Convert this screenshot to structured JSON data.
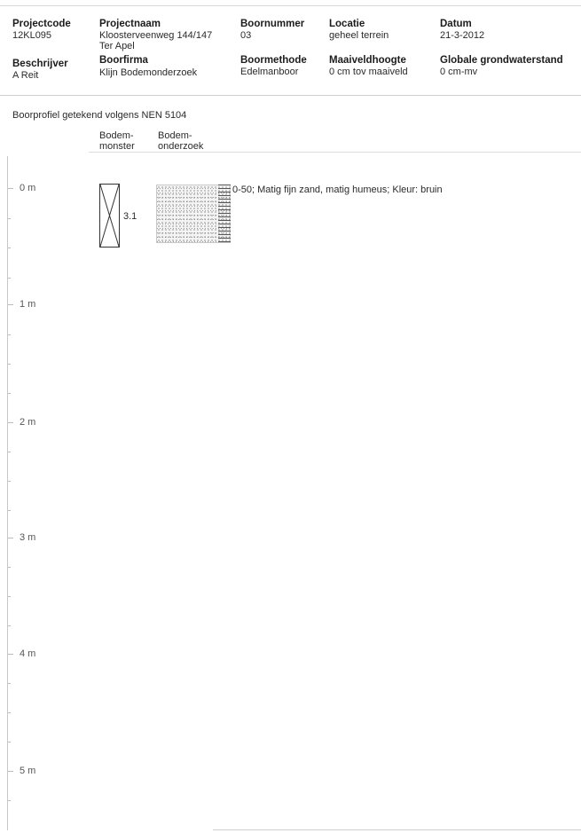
{
  "header": {
    "projectcode": {
      "label": "Projectcode",
      "value": "12KL095"
    },
    "projectnaam": {
      "label": "Projectnaam",
      "value_line1": "Kloosterveenweg 144/147",
      "value_line2": "Ter Apel"
    },
    "boornummer": {
      "label": "Boornummer",
      "value": "03"
    },
    "locatie": {
      "label": "Locatie",
      "value": "geheel terrein"
    },
    "datum": {
      "label": "Datum",
      "value": "21-3-2012"
    },
    "beschrijver": {
      "label": "Beschrijver",
      "value": "A Reit"
    },
    "boorfirma": {
      "label": "Boorfirma",
      "value": "Klijn Bodemonderzoek"
    },
    "boormethode": {
      "label": "Boormethode",
      "value": "Edelmanboor"
    },
    "maaiveldhoogte": {
      "label": "Maaiveldhoogte",
      "value": "0 cm tov maaiveld"
    },
    "grondwaterstand": {
      "label": "Globale grondwaterstand",
      "value": "0 cm-mv"
    }
  },
  "profile_note": "Boorprofiel getekend volgens NEN 5104",
  "columns": {
    "bodemmonster_line1": "Bodem-",
    "bodemmonster_line2": "monster",
    "bodemonderzoek_line1": "Bodem-",
    "bodemonderzoek_line2": "onderzoek"
  },
  "depth_labels": [
    "0 m",
    "1 m",
    "2 m",
    "3 m",
    "4 m",
    "5 m"
  ],
  "sample": {
    "id": "3.1"
  },
  "layer": {
    "description": "0-50; Matig fijn zand, matig humeus; Kleur: bruin"
  }
}
